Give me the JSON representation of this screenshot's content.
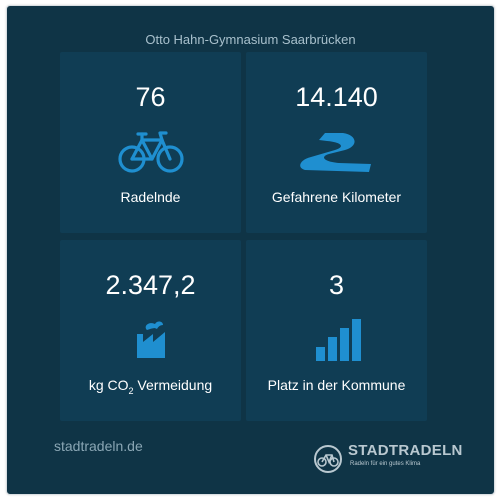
{
  "title": "Otto Hahn-Gymnasium Saarbrücken",
  "colors": {
    "background": "#0f3446",
    "tile": "#103d54",
    "accent": "#1f8fd0"
  },
  "stats": [
    {
      "value": "76",
      "label": "Radelnde",
      "icon": "bicycle-icon"
    },
    {
      "value": "14.140",
      "label": "Gefahrene Kilometer",
      "icon": "road-icon"
    },
    {
      "value": "2.347,2",
      "label_prefix": "kg CO",
      "label_sub": "2",
      "label_suffix": " Vermeidung",
      "icon": "factory-icon"
    },
    {
      "value": "3",
      "label": "Platz in der Kommune",
      "icon": "ranking-bars-icon"
    }
  ],
  "footer": {
    "site": "stadtradeln.de",
    "logo_name": "STADTRADELN",
    "logo_tagline": "Radeln für ein gutes Klima"
  }
}
